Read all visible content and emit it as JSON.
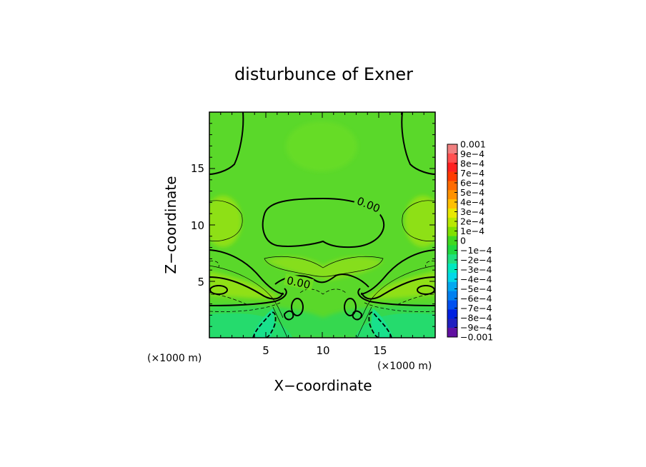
{
  "chart_data": {
    "type": "heatmap",
    "title": "disturbunce of Exner",
    "xlabel": "X−coordinate",
    "ylabel": "Z−coordinate",
    "x_unit": "(×1000 m)",
    "y_unit": "(×1000 m)",
    "xlim": [
      0,
      20
    ],
    "ylim": [
      0,
      20
    ],
    "x_ticks": [
      "5",
      "10",
      "15"
    ],
    "y_ticks": [
      "5",
      "10",
      "15"
    ],
    "contour_labels": [
      "0.00",
      "0.00"
    ],
    "colorbar": {
      "labels": [
        "0.001",
        "9e−4",
        "8e−4",
        "7e−4",
        "6e−4",
        "5e−4",
        "4e−4",
        "3e−4",
        "2e−4",
        "1e−4",
        "0",
        "−1e−4",
        "−2e−4",
        "−3e−4",
        "−4e−4",
        "−5e−4",
        "−6e−4",
        "−7e−4",
        "−8e−4",
        "−9e−4",
        "−0.001"
      ],
      "colors": [
        "#f08080",
        "#ff5050",
        "#ff2020",
        "#ff3a00",
        "#ff6a00",
        "#ff9200",
        "#ffc000",
        "#e8e800",
        "#b8e800",
        "#80e000",
        "#40d820",
        "#20d840",
        "#20e080",
        "#00e8c0",
        "#00d8e8",
        "#00a8f0",
        "#0080f0",
        "#0050f0",
        "#0020e0",
        "#2020c0",
        "#6010a0"
      ]
    },
    "field_colors": {
      "background": "#5ad82a",
      "positive_1": "#7ee01a",
      "positive_2": "#96e214",
      "negative_1": "#34d850",
      "negative_2": "#22dc78",
      "negative_3": "#12e094"
    }
  }
}
